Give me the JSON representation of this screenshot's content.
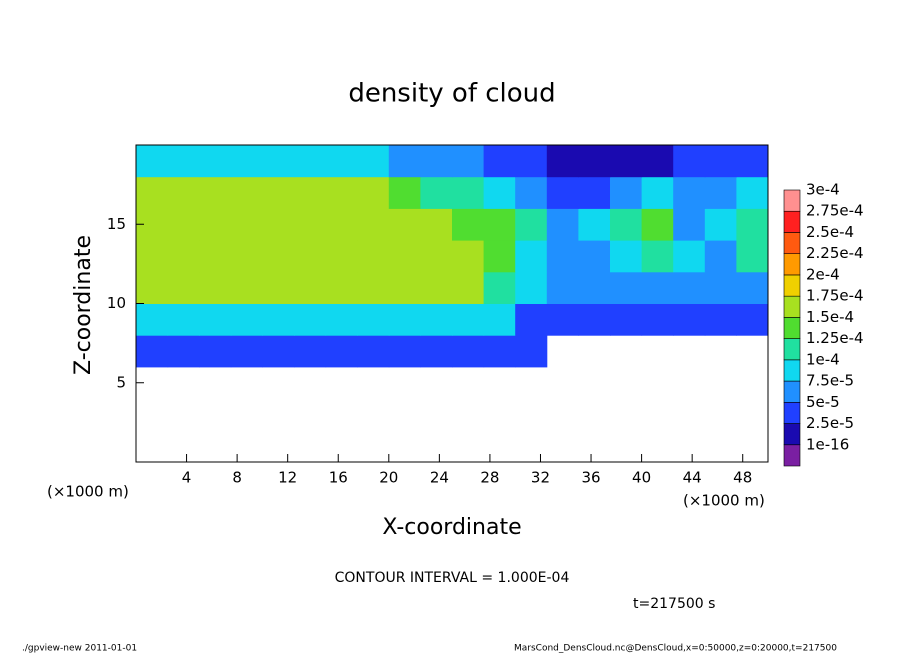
{
  "chart_data": {
    "type": "heatmap",
    "title": "density of cloud",
    "x_label": "X-coordinate",
    "y_label": "Z-coordinate",
    "x_unit_left": "(×1000 m)",
    "x_unit_right": "(×1000 m)",
    "contour_note": "CONTOUR INTERVAL = 1.000E-04",
    "time_note": "t=217500 s",
    "footer_left": "./gpview-new  2011-01-01",
    "footer_right": "MarsCond_DensCloud.nc@DensCloud,x=0:50000,z=0:20000,t=217500",
    "xlim": [
      0,
      50
    ],
    "ylim": [
      0,
      20
    ],
    "xticks": [
      4,
      8,
      12,
      16,
      20,
      24,
      28,
      32,
      36,
      40,
      44,
      48
    ],
    "yticks": [
      5,
      10,
      15
    ],
    "x_edges": [
      0,
      2.5,
      5,
      7.5,
      10,
      12.5,
      15,
      17.5,
      20,
      22.5,
      25,
      27.5,
      30,
      32.5,
      35,
      37.5,
      40,
      42.5,
      45,
      47.5,
      50
    ],
    "z_edges": [
      0,
      2,
      4,
      6,
      8,
      10,
      12,
      14,
      16,
      18,
      20
    ],
    "z": [
      [
        null,
        null,
        null,
        null,
        null,
        null,
        null,
        null,
        null,
        null,
        null,
        null,
        null,
        null,
        null,
        null,
        null,
        null,
        null,
        null
      ],
      [
        null,
        null,
        null,
        null,
        null,
        null,
        null,
        null,
        null,
        null,
        null,
        null,
        null,
        null,
        null,
        null,
        null,
        null,
        null,
        null
      ],
      [
        null,
        null,
        null,
        null,
        null,
        null,
        null,
        null,
        null,
        null,
        null,
        null,
        null,
        null,
        null,
        null,
        null,
        null,
        null,
        null
      ],
      [
        3e-05,
        3e-05,
        3e-05,
        3e-05,
        3e-05,
        3e-05,
        3e-05,
        3e-05,
        3e-05,
        3e-05,
        3e-05,
        3e-05,
        3e-05,
        null,
        null,
        null,
        null,
        null,
        null,
        null
      ],
      [
        8e-05,
        8e-05,
        8e-05,
        8e-05,
        8e-05,
        8e-05,
        8e-05,
        8e-05,
        8e-05,
        8e-05,
        8e-05,
        8e-05,
        4e-05,
        4e-05,
        4e-05,
        4e-05,
        4e-05,
        4e-05,
        4e-05,
        4e-05
      ],
      [
        0.00016,
        0.00016,
        0.00016,
        0.00016,
        0.00016,
        0.00016,
        0.00016,
        0.00016,
        0.00016,
        0.00015,
        0.00015,
        0.00012,
        8e-05,
        5e-05,
        5e-05,
        5e-05,
        7e-05,
        6e-05,
        6e-05,
        6e-05
      ],
      [
        0.00016,
        0.00016,
        0.00016,
        0.00016,
        0.00016,
        0.00016,
        0.00016,
        0.00016,
        0.00016,
        0.00015,
        0.00015,
        0.00013,
        9e-05,
        6e-05,
        6e-05,
        9e-05,
        0.00012,
        8e-05,
        6e-05,
        0.00012
      ],
      [
        0.00016,
        0.00016,
        0.00016,
        0.00016,
        0.00016,
        0.00016,
        0.00016,
        0.00016,
        0.00016,
        0.00015,
        0.00014,
        0.00013,
        0.0001,
        7e-05,
        8e-05,
        0.00012,
        0.00013,
        7e-05,
        9e-05,
        0.00012
      ],
      [
        0.00015,
        0.00015,
        0.00015,
        0.00015,
        0.00015,
        0.00015,
        0.00015,
        0.00015,
        0.00014,
        0.00012,
        0.00011,
        9e-05,
        6e-05,
        4e-05,
        4e-05,
        6e-05,
        9e-05,
        6e-05,
        6e-05,
        8e-05
      ],
      [
        9e-05,
        9e-05,
        9e-05,
        9e-05,
        9e-05,
        9e-05,
        9e-05,
        9e-05,
        6e-05,
        5e-05,
        5e-05,
        4e-05,
        4e-05,
        1e-05,
        1e-05,
        1e-05,
        1e-05,
        3e-05,
        3e-05,
        3e-05
      ]
    ],
    "levels": [
      {
        "value": 1e-16,
        "label": "1e-16"
      },
      {
        "value": 2.5e-05,
        "label": "2.5e-5"
      },
      {
        "value": 5e-05,
        "label": "5e-5"
      },
      {
        "value": 7.5e-05,
        "label": "7.5e-5"
      },
      {
        "value": 0.0001,
        "label": "1e-4"
      },
      {
        "value": 0.000125,
        "label": "1.25e-4"
      },
      {
        "value": 0.00015,
        "label": "1.5e-4"
      },
      {
        "value": 0.000175,
        "label": "1.75e-4"
      },
      {
        "value": 0.0002,
        "label": "2e-4"
      },
      {
        "value": 0.000225,
        "label": "2.25e-4"
      },
      {
        "value": 0.00025,
        "label": "2.5e-4"
      },
      {
        "value": 0.000275,
        "label": "2.75e-4"
      },
      {
        "value": 0.0003,
        "label": "3e-4"
      }
    ],
    "colors": [
      "#7a1fa2",
      "#1a0ab0",
      "#2040ff",
      "#2090ff",
      "#10d8f0",
      "#20e0a0",
      "#50dd30",
      "#a8e020",
      "#f0d000",
      "#ff9a00",
      "#ff5a10",
      "#ff2020",
      "#ff9090"
    ]
  }
}
